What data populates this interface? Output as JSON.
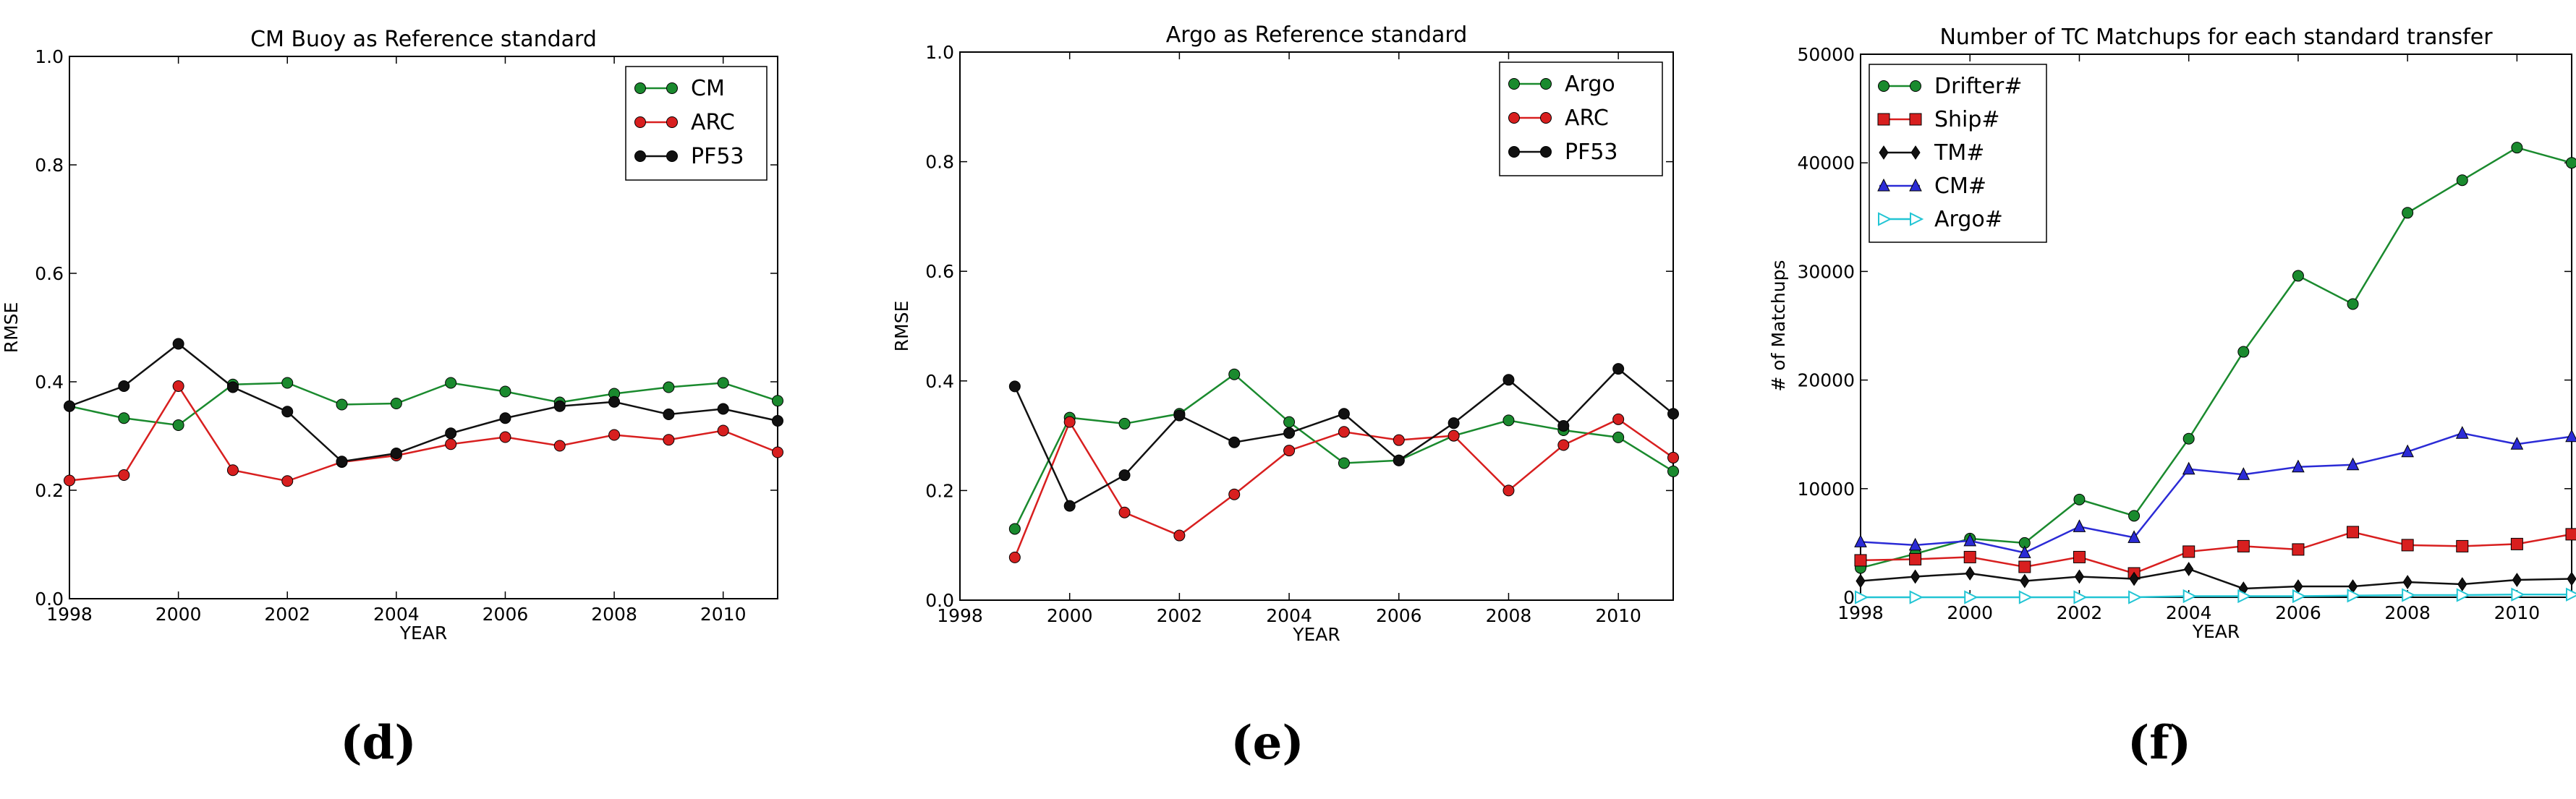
{
  "chart_data": [
    {
      "type": "line",
      "title": "CM Buoy as Reference standard",
      "xlabel": "YEAR",
      "ylabel": "RMSE",
      "xlim": [
        1998,
        2011
      ],
      "ylim": [
        0,
        1.0
      ],
      "xticks": [
        "1998",
        "2000",
        "2002",
        "2004",
        "2006",
        "2008",
        "2010"
      ],
      "yticks": [
        "0.0",
        "0.2",
        "0.4",
        "0.6",
        "0.8",
        "1.0"
      ],
      "legend_position": "top-right",
      "panel_label": "(d)",
      "series": [
        {
          "name": "CM",
          "color": "#1a8a2e",
          "marker": "circle",
          "x": [
            1998,
            1999,
            2000,
            2001,
            2002,
            2003,
            2004,
            2005,
            2006,
            2007,
            2008,
            2009,
            2010,
            2011
          ],
          "values": [
            0.355,
            0.333,
            0.32,
            0.395,
            0.398,
            0.358,
            0.36,
            0.398,
            0.382,
            0.362,
            0.378,
            0.39,
            0.398,
            0.365
          ]
        },
        {
          "name": "ARC",
          "color": "#d81f1f",
          "marker": "circle",
          "x": [
            1998,
            1999,
            2000,
            2001,
            2002,
            2003,
            2004,
            2005,
            2006,
            2007,
            2008,
            2009,
            2010,
            2011
          ],
          "values": [
            0.218,
            0.228,
            0.392,
            0.237,
            0.217,
            0.252,
            0.264,
            0.285,
            0.298,
            0.282,
            0.302,
            0.293,
            0.31,
            0.27
          ]
        },
        {
          "name": "PF53",
          "color": "#111111",
          "marker": "circle",
          "x": [
            1998,
            1999,
            2000,
            2001,
            2002,
            2003,
            2004,
            2005,
            2006,
            2007,
            2008,
            2009,
            2010,
            2011
          ],
          "values": [
            0.355,
            0.392,
            0.47,
            0.39,
            0.345,
            0.253,
            0.268,
            0.305,
            0.333,
            0.355,
            0.363,
            0.34,
            0.35,
            0.328
          ]
        }
      ]
    },
    {
      "type": "line",
      "title": "Argo as Reference standard",
      "xlabel": "YEAR",
      "ylabel": "RMSE",
      "xlim": [
        1998,
        2011
      ],
      "ylim": [
        0,
        1.0
      ],
      "xticks": [
        "1998",
        "2000",
        "2002",
        "2004",
        "2006",
        "2008",
        "2010"
      ],
      "yticks": [
        "0.0",
        "0.2",
        "0.4",
        "0.6",
        "0.8",
        "1.0"
      ],
      "legend_position": "top-right",
      "panel_label": "(e)",
      "series": [
        {
          "name": "Argo",
          "color": "#1a8a2e",
          "marker": "circle",
          "x": [
            1999,
            2000,
            2001,
            2002,
            2003,
            2004,
            2005,
            2006,
            2007,
            2008,
            2009,
            2010,
            2011
          ],
          "values": [
            0.13,
            0.333,
            0.322,
            0.34,
            0.412,
            0.325,
            0.25,
            0.255,
            0.3,
            0.328,
            0.31,
            0.297,
            0.235
          ]
        },
        {
          "name": "ARC",
          "color": "#d81f1f",
          "marker": "circle",
          "x": [
            1999,
            2000,
            2001,
            2002,
            2003,
            2004,
            2005,
            2006,
            2007,
            2008,
            2009,
            2010,
            2011
          ],
          "values": [
            0.078,
            0.325,
            0.16,
            0.118,
            0.193,
            0.273,
            0.307,
            0.292,
            0.3,
            0.2,
            0.283,
            0.33,
            0.26
          ]
        },
        {
          "name": "PF53",
          "color": "#111111",
          "marker": "circle",
          "x": [
            1999,
            2000,
            2001,
            2002,
            2003,
            2004,
            2005,
            2006,
            2007,
            2008,
            2009,
            2010,
            2011
          ],
          "values": [
            0.39,
            0.172,
            0.228,
            0.337,
            0.288,
            0.305,
            0.34,
            0.255,
            0.323,
            0.402,
            0.318,
            0.422,
            0.34
          ]
        }
      ]
    },
    {
      "type": "line",
      "title": "Number of TC Matchups for each standard transfer",
      "xlabel": "YEAR",
      "ylabel": "# of Matchups",
      "xlim": [
        1998,
        2011
      ],
      "ylim": [
        0,
        50000
      ],
      "xticks": [
        "1998",
        "2000",
        "2002",
        "2004",
        "2006",
        "2008",
        "2010"
      ],
      "yticks": [
        "0",
        "10000",
        "20000",
        "30000",
        "40000",
        "50000"
      ],
      "legend_position": "top-left",
      "panel_label": "(f)",
      "series": [
        {
          "name": "Drifter#",
          "color": "#1a8a2e",
          "marker": "circle",
          "x": [
            1998,
            1999,
            2000,
            2001,
            2002,
            2003,
            2004,
            2005,
            2006,
            2007,
            2008,
            2009,
            2010,
            2011
          ],
          "values": [
            2700,
            4000,
            5400,
            5000,
            9000,
            7500,
            14600,
            22600,
            29600,
            27000,
            35400,
            38400,
            41400,
            40000
          ]
        },
        {
          "name": "Ship#",
          "color": "#d81f1f",
          "marker": "square",
          "x": [
            1998,
            1999,
            2000,
            2001,
            2002,
            2003,
            2004,
            2005,
            2006,
            2007,
            2008,
            2009,
            2010,
            2011
          ],
          "values": [
            3400,
            3500,
            3700,
            2800,
            3700,
            2200,
            4200,
            4700,
            4400,
            6000,
            4800,
            4700,
            4900,
            5800
          ]
        },
        {
          "name": "TM#",
          "color": "#111111",
          "marker": "diamond",
          "x": [
            1998,
            1999,
            2000,
            2001,
            2002,
            2003,
            2004,
            2005,
            2006,
            2007,
            2008,
            2009,
            2010,
            2011
          ],
          "values": [
            1500,
            1900,
            2200,
            1500,
            1900,
            1700,
            2600,
            800,
            1000,
            1000,
            1400,
            1200,
            1600,
            1700
          ]
        },
        {
          "name": "CM#",
          "color": "#2b2bd6",
          "marker": "triangle-up",
          "x": [
            1998,
            1999,
            2000,
            2001,
            2002,
            2003,
            2004,
            2005,
            2006,
            2007,
            2008,
            2009,
            2010,
            2011
          ],
          "values": [
            5100,
            4800,
            5200,
            4100,
            6500,
            5500,
            11800,
            11300,
            12000,
            12200,
            13400,
            15100,
            14100,
            14800
          ]
        },
        {
          "name": "Argo#",
          "color": "#22c5d4",
          "marker": "triangle-right",
          "x": [
            1998,
            1999,
            2000,
            2001,
            2002,
            2003,
            2004,
            2005,
            2006,
            2007,
            2008,
            2009,
            2010,
            2011
          ],
          "values": [
            0,
            0,
            0,
            0,
            0,
            0,
            100,
            100,
            100,
            150,
            200,
            200,
            250,
            250
          ]
        }
      ]
    }
  ]
}
